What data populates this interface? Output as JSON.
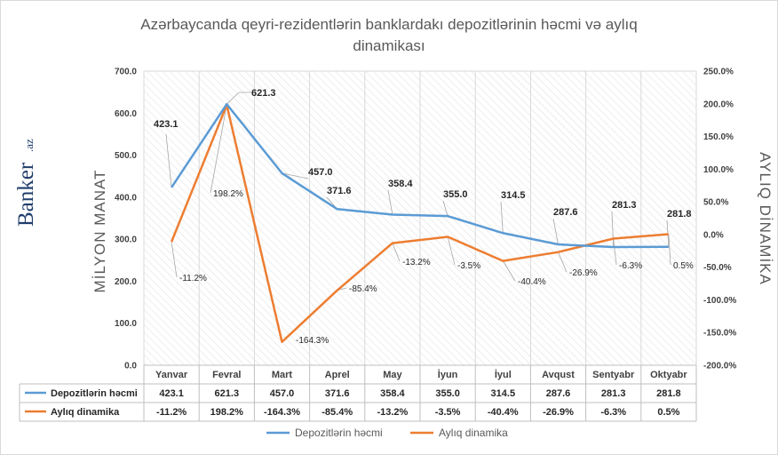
{
  "brand": {
    "name": "Banker",
    "suffix": ".az",
    "color": "#1f3d6b"
  },
  "chart_data": {
    "type": "line",
    "title": "Azərbaycanda qeyri-rezidentlərin banklardakı depozitlərinin həcmi və aylıq dinamikası",
    "title_lines": [
      "Azərbaycanda qeyri-rezidentlərin banklardakı depozitlərinin həcmi və aylıq",
      "dinamikası"
    ],
    "categories": [
      "Yanvar",
      "Fevral",
      "Mart",
      "Aprel",
      "May",
      "İyun",
      "İyul",
      "Avqust",
      "Sentyabr",
      "Oktyabr"
    ],
    "series": [
      {
        "name": "Depozitlərin həcmi",
        "axis": "left",
        "color": "#5b9bd5",
        "values": [
          423.1,
          621.3,
          457.0,
          371.6,
          358.4,
          355.0,
          314.5,
          287.6,
          281.3,
          281.8
        ],
        "labels": [
          "423.1",
          "621.3",
          "457.0",
          "371.6",
          "358.4",
          "355.0",
          "314.5",
          "287.6",
          "281.3",
          "281.8"
        ]
      },
      {
        "name": "Aylıq dinamika",
        "axis": "right",
        "color": "#ed7d31",
        "values": [
          -11.2,
          198.2,
          -164.3,
          -85.4,
          -13.2,
          -3.5,
          -40.4,
          -26.9,
          -6.3,
          0.5
        ],
        "labels": [
          "-11.2%",
          "198.2%",
          "-164.3%",
          "-85.4%",
          "-13.2%",
          "-3.5%",
          "-40.4%",
          "-26.9%",
          "-6.3%",
          "0.5%"
        ]
      }
    ],
    "ylabel": "MİLYON MANAT",
    "y2label": "AYLIQ DİNAMİKA",
    "ylim": [
      0,
      700
    ],
    "y2lim": [
      -200,
      250
    ],
    "yticks": [
      "0.0",
      "100.0",
      "200.0",
      "300.0",
      "400.0",
      "500.0",
      "600.0",
      "700.0"
    ],
    "y2ticks": [
      "-200.0%",
      "-150.0%",
      "-100.0%",
      "-50.0%",
      "0.0%",
      "50.0%",
      "100.0%",
      "150.0%",
      "200.0%",
      "250.0%"
    ],
    "legend": "bottom",
    "data_table": true,
    "background": "hatched"
  }
}
